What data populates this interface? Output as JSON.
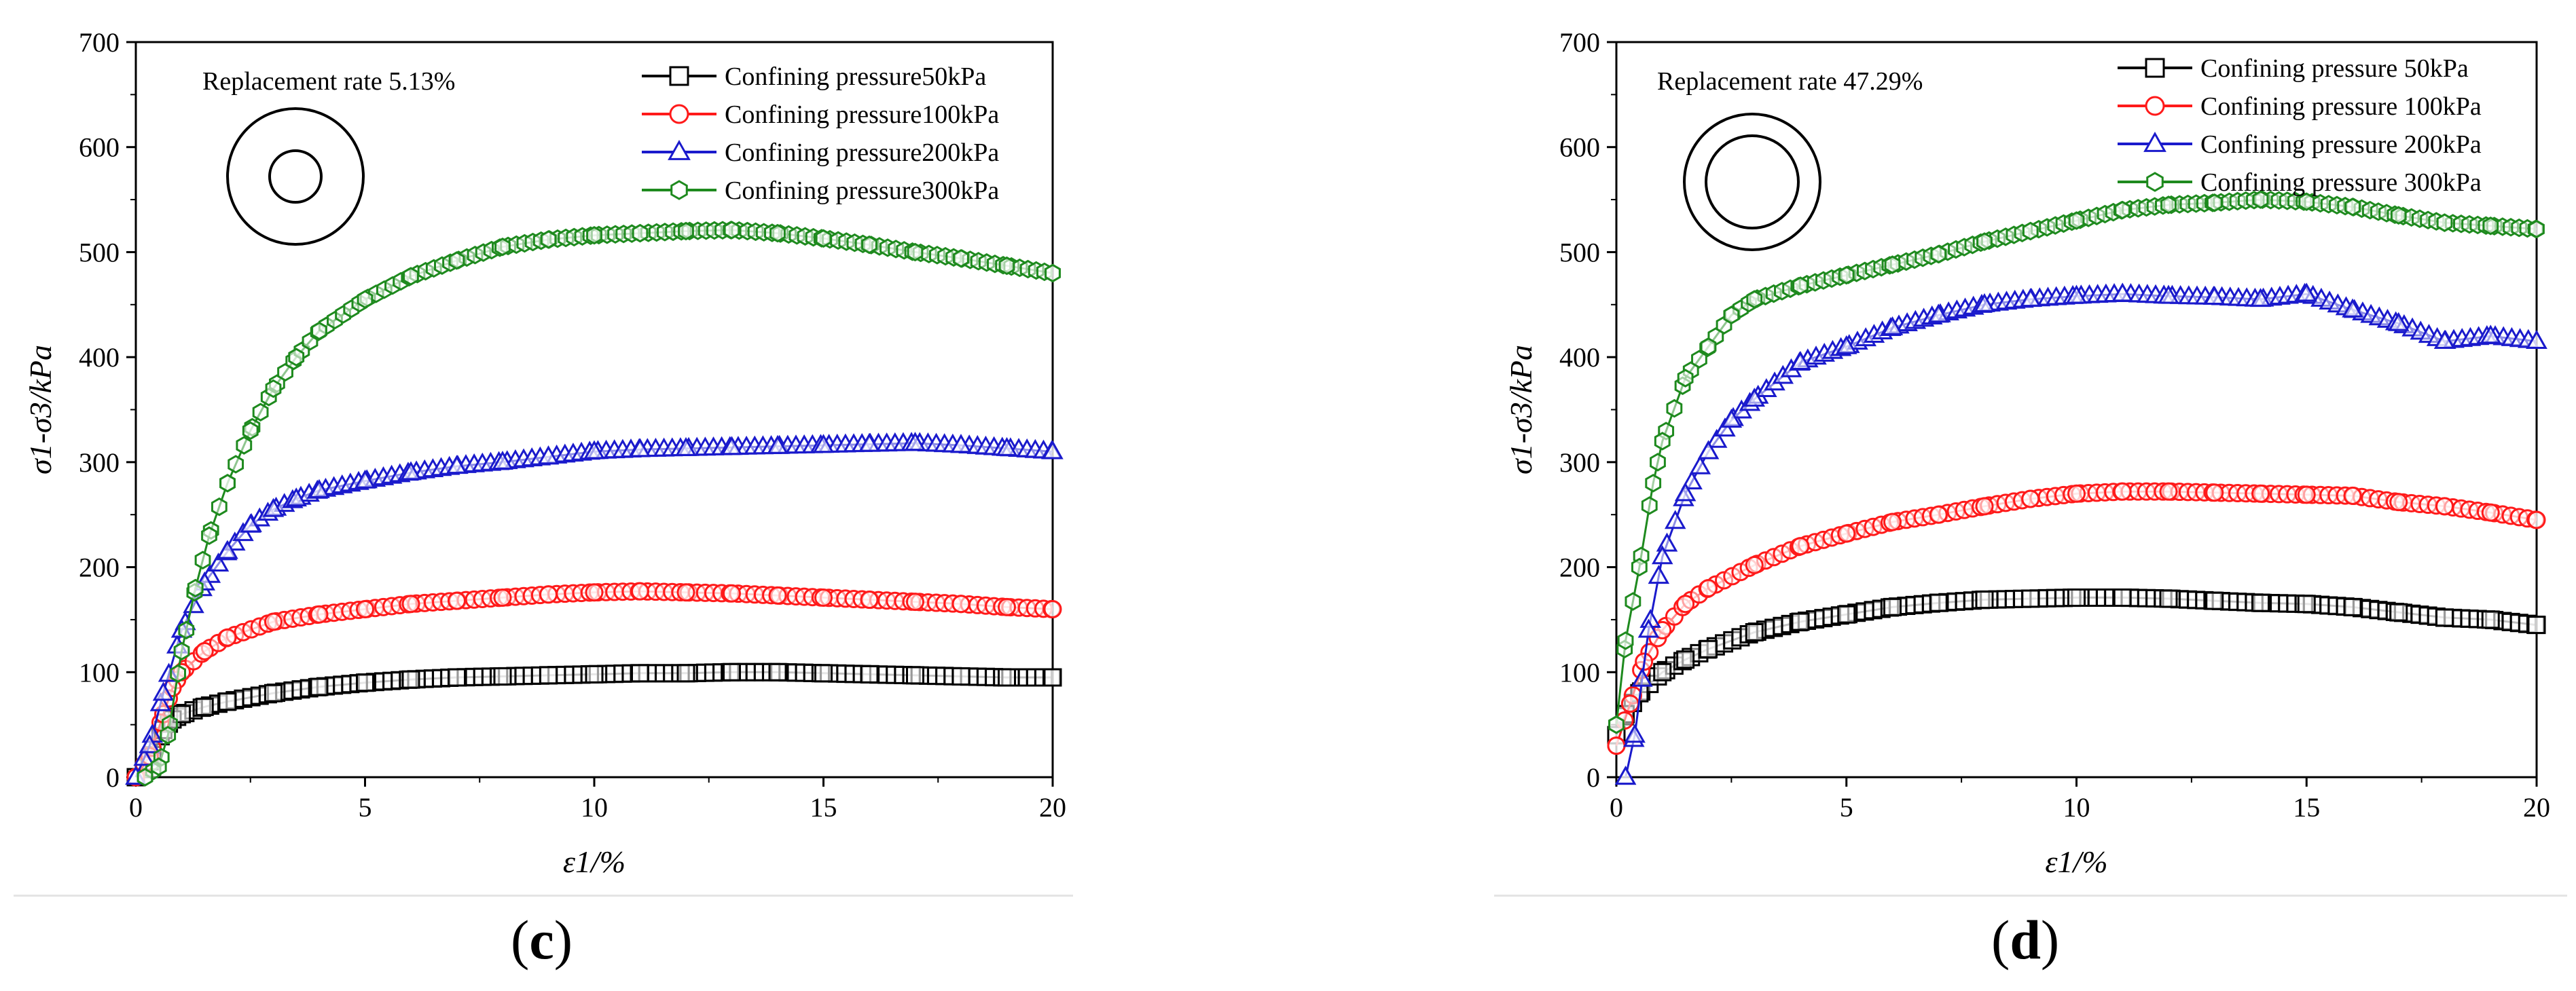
{
  "charts": [
    {
      "panel_label": "(c)",
      "panel_letter": "c",
      "replacement_text": "Replacement rate 5.13%"
    },
    {
      "panel_label": "(d)",
      "panel_letter": "d",
      "replacement_text": "Replacement rate 47.29%"
    }
  ],
  "colors": {
    "series": [
      "#000000",
      "#ff1a1a",
      "#1a1acc",
      "#1e8a1e"
    ]
  },
  "chart_data": [
    {
      "type": "scatter",
      "title": "Replacement rate 5.13%",
      "xlabel": "ε1/%",
      "ylabel": "σ1-σ3/kPa",
      "xlim": [
        0,
        20
      ],
      "ylim": [
        0,
        700
      ],
      "xticks": [
        0,
        5,
        10,
        15,
        20
      ],
      "yticks": [
        0,
        100,
        200,
        300,
        400,
        500,
        600,
        700
      ],
      "legend_position": "top-right",
      "annotation": "Replacement rate 5.13%",
      "inset": "concentric-circles-small-core",
      "series": [
        {
          "name": "Confining pressure50kPa",
          "marker": "square",
          "points": [
            [
              0,
              0
            ],
            [
              0.3,
              15
            ],
            [
              0.6,
              45
            ],
            [
              0.8,
              55
            ],
            [
              1,
              60
            ],
            [
              1.5,
              67
            ],
            [
              2,
              72
            ],
            [
              3,
              80
            ],
            [
              4,
              86
            ],
            [
              5,
              90
            ],
            [
              6,
              93
            ],
            [
              7,
              95
            ],
            [
              8,
              96
            ],
            [
              9,
              97
            ],
            [
              10,
              98
            ],
            [
              11,
              99
            ],
            [
              12,
              99
            ],
            [
              13,
              100
            ],
            [
              14,
              100
            ],
            [
              15,
              99
            ],
            [
              16,
              98
            ],
            [
              17,
              97
            ],
            [
              18,
              96
            ],
            [
              19,
              95
            ],
            [
              20,
              95
            ]
          ]
        },
        {
          "name": "Confining pressure100kPa",
          "marker": "circle",
          "points": [
            [
              0,
              0
            ],
            [
              0.3,
              20
            ],
            [
              0.6,
              60
            ],
            [
              0.8,
              85
            ],
            [
              1,
              100
            ],
            [
              1.5,
              120
            ],
            [
              2,
              133
            ],
            [
              3,
              148
            ],
            [
              4,
              155
            ],
            [
              5,
              160
            ],
            [
              6,
              165
            ],
            [
              7,
              168
            ],
            [
              8,
              171
            ],
            [
              9,
              174
            ],
            [
              10,
              176
            ],
            [
              11,
              177
            ],
            [
              12,
              176
            ],
            [
              13,
              175
            ],
            [
              14,
              173
            ],
            [
              15,
              171
            ],
            [
              16,
              169
            ],
            [
              17,
              167
            ],
            [
              18,
              165
            ],
            [
              19,
              162
            ],
            [
              20,
              160
            ]
          ]
        },
        {
          "name": "Confining pressure200kPa",
          "marker": "triangle",
          "points": [
            [
              0,
              0
            ],
            [
              0.3,
              30
            ],
            [
              0.6,
              80
            ],
            [
              1,
              140
            ],
            [
              1.5,
              185
            ],
            [
              2,
              215
            ],
            [
              2.5,
              240
            ],
            [
              3,
              255
            ],
            [
              3.5,
              265
            ],
            [
              4,
              273
            ],
            [
              5,
              282
            ],
            [
              6,
              290
            ],
            [
              7,
              296
            ],
            [
              8,
              300
            ],
            [
              9,
              305
            ],
            [
              10,
              310
            ],
            [
              11,
              312
            ],
            [
              12,
              313
            ],
            [
              13,
              314
            ],
            [
              14,
              315
            ],
            [
              15,
              316
            ],
            [
              16,
              317
            ],
            [
              17,
              318
            ],
            [
              18,
              316
            ],
            [
              19,
              313
            ],
            [
              20,
              310
            ]
          ]
        },
        {
          "name": "Confining pressure300kPa",
          "marker": "hexagon",
          "points": [
            [
              0.2,
              0
            ],
            [
              0.5,
              10
            ],
            [
              0.7,
              40
            ],
            [
              1,
              120
            ],
            [
              1.3,
              180
            ],
            [
              1.6,
              230
            ],
            [
              2,
              280
            ],
            [
              2.5,
              330
            ],
            [
              3,
              370
            ],
            [
              3.5,
              400
            ],
            [
              4,
              425
            ],
            [
              5,
              455
            ],
            [
              6,
              477
            ],
            [
              7,
              492
            ],
            [
              8,
              505
            ],
            [
              9,
              512
            ],
            [
              10,
              516
            ],
            [
              11,
              518
            ],
            [
              12,
              520
            ],
            [
              13,
              521
            ],
            [
              14,
              518
            ],
            [
              15,
              513
            ],
            [
              16,
              507
            ],
            [
              17,
              500
            ],
            [
              18,
              494
            ],
            [
              19,
              487
            ],
            [
              20,
              480
            ]
          ]
        }
      ]
    },
    {
      "type": "scatter",
      "title": "Replacement rate 47.29%",
      "xlabel": "ε1/%",
      "ylabel": "σ1-σ3/kPa",
      "xlim": [
        0,
        20
      ],
      "ylim": [
        0,
        700
      ],
      "xticks": [
        0,
        5,
        10,
        15,
        20
      ],
      "yticks": [
        0,
        100,
        200,
        300,
        400,
        500,
        600,
        700
      ],
      "legend_position": "top-right",
      "annotation": "Replacement rate 47.29%",
      "inset": "concentric-circles-large-core",
      "series": [
        {
          "name": "Confining pressure 50kPa",
          "marker": "square",
          "points": [
            [
              0,
              40
            ],
            [
              0.2,
              60
            ],
            [
              0.5,
              80
            ],
            [
              1,
              100
            ],
            [
              1.5,
              112
            ],
            [
              2,
              122
            ],
            [
              3,
              138
            ],
            [
              4,
              148
            ],
            [
              5,
              155
            ],
            [
              6,
              162
            ],
            [
              7,
              166
            ],
            [
              8,
              169
            ],
            [
              9,
              170
            ],
            [
              10,
              171
            ],
            [
              11,
              171
            ],
            [
              12,
              170
            ],
            [
              13,
              168
            ],
            [
              14,
              166
            ],
            [
              15,
              165
            ],
            [
              16,
              162
            ],
            [
              17,
              157
            ],
            [
              18,
              152
            ],
            [
              19,
              150
            ],
            [
              20,
              145
            ]
          ]
        },
        {
          "name": "Confining pressure 100kPa",
          "marker": "circle",
          "points": [
            [
              0,
              30
            ],
            [
              0.3,
              70
            ],
            [
              0.6,
              110
            ],
            [
              1,
              140
            ],
            [
              1.5,
              165
            ],
            [
              2,
              180
            ],
            [
              3,
              202
            ],
            [
              4,
              220
            ],
            [
              5,
              232
            ],
            [
              6,
              243
            ],
            [
              7,
              250
            ],
            [
              8,
              258
            ],
            [
              9,
              265
            ],
            [
              10,
              270
            ],
            [
              11,
              272
            ],
            [
              12,
              272
            ],
            [
              13,
              271
            ],
            [
              14,
              270
            ],
            [
              15,
              269
            ],
            [
              16,
              268
            ],
            [
              17,
              262
            ],
            [
              18,
              258
            ],
            [
              19,
              252
            ],
            [
              20,
              245
            ]
          ]
        },
        {
          "name": "Confining pressure 200kPa",
          "marker": "triangle",
          "points": [
            [
              0.2,
              0
            ],
            [
              0.4,
              40
            ],
            [
              0.7,
              140
            ],
            [
              1,
              210
            ],
            [
              1.5,
              270
            ],
            [
              2,
              310
            ],
            [
              2.5,
              340
            ],
            [
              3,
              360
            ],
            [
              4,
              395
            ],
            [
              5,
              410
            ],
            [
              6,
              428
            ],
            [
              7,
              440
            ],
            [
              8,
              450
            ],
            [
              9,
              455
            ],
            [
              10,
              458
            ],
            [
              11,
              460
            ],
            [
              12,
              458
            ],
            [
              13,
              457
            ],
            [
              14,
              455
            ],
            [
              15,
              460
            ],
            [
              16,
              445
            ],
            [
              17,
              432
            ],
            [
              18,
              415
            ],
            [
              19,
              420
            ],
            [
              20,
              415
            ]
          ]
        },
        {
          "name": "Confining pressure 300kPa",
          "marker": "hexagon",
          "points": [
            [
              0,
              50
            ],
            [
              0.2,
              130
            ],
            [
              0.5,
              200
            ],
            [
              0.8,
              280
            ],
            [
              1,
              320
            ],
            [
              1.5,
              380
            ],
            [
              2,
              410
            ],
            [
              2.5,
              440
            ],
            [
              3,
              455
            ],
            [
              4,
              468
            ],
            [
              5,
              478
            ],
            [
              6,
              488
            ],
            [
              7,
              498
            ],
            [
              8,
              510
            ],
            [
              9,
              520
            ],
            [
              10,
              530
            ],
            [
              11,
              540
            ],
            [
              12,
              545
            ],
            [
              13,
              547
            ],
            [
              14,
              550
            ],
            [
              15,
              548
            ],
            [
              16,
              543
            ],
            [
              17,
              535
            ],
            [
              18,
              528
            ],
            [
              19,
              525
            ],
            [
              20,
              522
            ]
          ]
        }
      ]
    }
  ]
}
